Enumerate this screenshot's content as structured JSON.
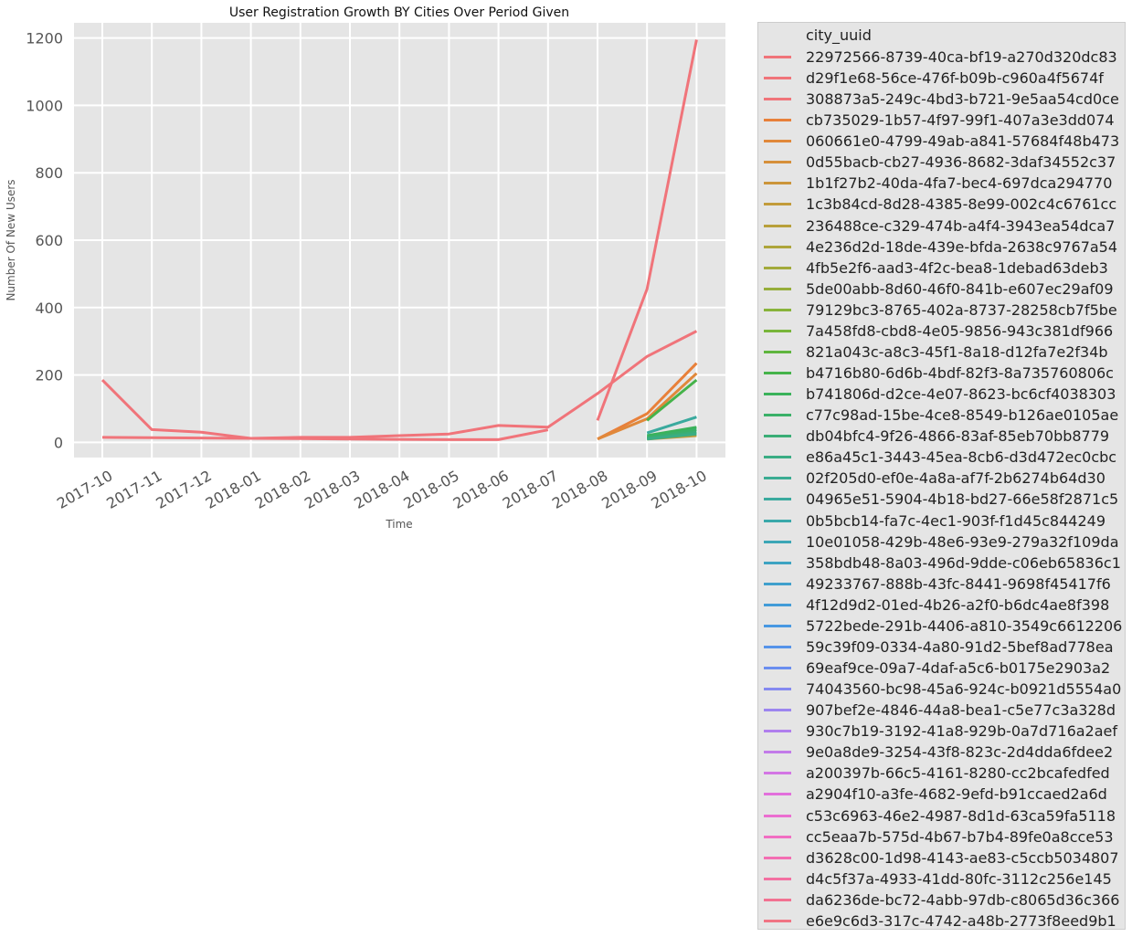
{
  "chart_data": {
    "type": "line",
    "title": "User Registration Growth BY Cities Over Period Given",
    "xlabel": "Time",
    "ylabel": "Number Of New Users",
    "x": [
      "2017-10",
      "2017-11",
      "2017-12",
      "2018-01",
      "2018-02",
      "2018-03",
      "2018-04",
      "2018-05",
      "2018-06",
      "2018-07",
      "2018-08",
      "2018-09",
      "2018-10"
    ],
    "ylim": [
      -45,
      1245
    ],
    "yticks": [
      0,
      200,
      400,
      600,
      800,
      1000,
      1200
    ],
    "grid": true,
    "legend_title": "city_uuid",
    "legend_position": "outside-right",
    "series": [
      {
        "name": "22972566-8739-40ca-bf19-a270d320dc83",
        "color": "#f0747a",
        "values": [
          null,
          null,
          null,
          null,
          null,
          null,
          null,
          null,
          null,
          null,
          65,
          455,
          1195
        ]
      },
      {
        "name": "d29f1e68-56ce-476f-b09b-c960a4f5674f",
        "color": "#f0747a",
        "values": [
          185,
          38,
          30,
          12,
          15,
          15,
          20,
          25,
          50,
          45,
          145,
          255,
          330
        ]
      },
      {
        "name": "308873a5-249c-4bd3-b721-9e5aa54cd0ce",
        "color": "#f0747a",
        "values": [
          15,
          14,
          13,
          12,
          11,
          10,
          9,
          8,
          8,
          37,
          null,
          null,
          null
        ]
      },
      {
        "name": "cb735029-1b57-4f97-99f1-407a3e3dd074",
        "color": "#e8803a",
        "values": [
          null,
          null,
          null,
          null,
          null,
          null,
          null,
          null,
          null,
          null,
          10,
          85,
          235
        ]
      },
      {
        "name": "060661e0-4799-49ab-a841-57684f48b473",
        "color": "#e0883a",
        "values": [
          null,
          null,
          null,
          null,
          null,
          null,
          null,
          null,
          null,
          null,
          10,
          70,
          205
        ]
      },
      {
        "name": "0d55bacb-cb27-4936-8682-3daf34552c37",
        "color": "#d68f3a",
        "values": [
          null,
          null,
          null,
          null,
          null,
          null,
          null,
          null,
          null,
          null,
          null,
          null,
          null
        ]
      },
      {
        "name": "1b1f27b2-40da-4fa7-bec4-697dca294770",
        "color": "#cc953a",
        "values": [
          null,
          null,
          null,
          null,
          null,
          null,
          null,
          null,
          null,
          null,
          null,
          null,
          null
        ]
      },
      {
        "name": "1c3b84cd-8d28-4385-8e99-002c4c6761cc",
        "color": "#c29b3a",
        "values": [
          null,
          null,
          null,
          null,
          null,
          null,
          null,
          null,
          null,
          null,
          null,
          10,
          20
        ]
      },
      {
        "name": "236488ce-c329-474b-a4f4-3943ea54dca7",
        "color": "#b8a03a",
        "values": [
          null,
          null,
          null,
          null,
          null,
          null,
          null,
          null,
          null,
          null,
          null,
          null,
          null
        ]
      },
      {
        "name": "4e236d2d-18de-439e-bfda-2638c9767a54",
        "color": "#aea53a",
        "values": [
          null,
          null,
          null,
          null,
          null,
          null,
          null,
          null,
          null,
          null,
          null,
          null,
          null
        ]
      },
      {
        "name": "4fb5e2f6-aad3-4f2c-bea8-1debad63deb3",
        "color": "#a2aa3a",
        "values": [
          null,
          null,
          null,
          null,
          null,
          null,
          null,
          null,
          null,
          null,
          null,
          null,
          null
        ]
      },
      {
        "name": "5de00abb-8d60-46f0-841b-e607ec29af09",
        "color": "#96ae3a",
        "values": [
          null,
          null,
          null,
          null,
          null,
          null,
          null,
          null,
          null,
          null,
          null,
          null,
          null
        ]
      },
      {
        "name": "79129bc3-8765-402a-8737-28258cb7f5be",
        "color": "#88b33a",
        "values": [
          null,
          null,
          null,
          null,
          null,
          null,
          null,
          null,
          null,
          null,
          null,
          null,
          null
        ]
      },
      {
        "name": "7a458fd8-cbd8-4e05-9856-943c381df966",
        "color": "#78b53a",
        "values": [
          null,
          null,
          null,
          null,
          null,
          null,
          null,
          null,
          null,
          null,
          null,
          null,
          null
        ]
      },
      {
        "name": "821a043c-a8c3-45f1-8a18-d12fa7e2f34b",
        "color": "#5fb53e",
        "values": [
          null,
          null,
          null,
          null,
          null,
          null,
          null,
          null,
          null,
          null,
          null,
          null,
          null
        ]
      },
      {
        "name": "b4716b80-6d6b-4bdf-82f3-8a735760806c",
        "color": "#45b34a",
        "values": [
          null,
          null,
          null,
          null,
          null,
          null,
          null,
          null,
          null,
          null,
          null,
          65,
          185
        ]
      },
      {
        "name": "b741806d-d2ce-4e07-8623-bc6cf4038303",
        "color": "#3ab25a",
        "values": [
          null,
          null,
          null,
          null,
          null,
          null,
          null,
          null,
          null,
          null,
          null,
          20,
          45
        ]
      },
      {
        "name": "c77c98ad-15be-4ce8-8549-b126ae0105ae",
        "color": "#3ab068",
        "values": [
          null,
          null,
          null,
          null,
          null,
          null,
          null,
          null,
          null,
          null,
          null,
          15,
          38
        ]
      },
      {
        "name": "db04bfc4-9f26-4866-83af-85eb70bb8779",
        "color": "#3aae76",
        "values": [
          null,
          null,
          null,
          null,
          null,
          null,
          null,
          null,
          null,
          null,
          null,
          12,
          30
        ]
      },
      {
        "name": "e86a45c1-3443-45ea-8cb6-d3d472ec0cbc",
        "color": "#3aad84",
        "values": [
          null,
          null,
          null,
          null,
          null,
          null,
          null,
          null,
          null,
          null,
          null,
          10,
          25
        ]
      },
      {
        "name": "02f205d0-ef0e-4a8a-af7f-2b6274b64d30",
        "color": "#3aac92",
        "values": [
          null,
          null,
          null,
          null,
          null,
          null,
          null,
          null,
          null,
          null,
          null,
          null,
          null
        ]
      },
      {
        "name": "04965e51-5904-4b18-bd27-66e58f2871c5",
        "color": "#3aaa9e",
        "values": [
          null,
          null,
          null,
          null,
          null,
          null,
          null,
          null,
          null,
          null,
          null,
          28,
          75
        ]
      },
      {
        "name": "0b5bcb14-fa7c-4ec1-903f-f1d45c844249",
        "color": "#3aa8aa",
        "values": [
          null,
          null,
          null,
          null,
          null,
          null,
          null,
          null,
          null,
          null,
          null,
          null,
          null
        ]
      },
      {
        "name": "10e01058-429b-48e6-93e9-279a32f109da",
        "color": "#3ba6b6",
        "values": [
          null,
          null,
          null,
          null,
          null,
          null,
          null,
          null,
          null,
          null,
          null,
          null,
          null
        ]
      },
      {
        "name": "358bdb48-8a03-496d-9dde-c06eb65836c1",
        "color": "#3da3c2",
        "values": [
          null,
          null,
          null,
          null,
          null,
          null,
          null,
          null,
          null,
          null,
          null,
          null,
          null
        ]
      },
      {
        "name": "49233767-888b-43fc-8441-9698f45417f6",
        "color": "#3fa0cd",
        "values": [
          null,
          null,
          null,
          null,
          null,
          null,
          null,
          null,
          null,
          null,
          null,
          null,
          null
        ]
      },
      {
        "name": "4f12d9d2-01ed-4b26-a2f0-b6dc4ae8f398",
        "color": "#429cd8",
        "values": [
          null,
          null,
          null,
          null,
          null,
          null,
          null,
          null,
          null,
          null,
          null,
          null,
          null
        ]
      },
      {
        "name": "5722bede-291b-4406-a810-3549c6612206",
        "color": "#4898e2",
        "values": [
          null,
          null,
          null,
          null,
          null,
          null,
          null,
          null,
          null,
          null,
          null,
          null,
          null
        ]
      },
      {
        "name": "59c39f09-0334-4a80-91d2-5bef8ad778ea",
        "color": "#5693ea",
        "values": [
          null,
          null,
          null,
          null,
          null,
          null,
          null,
          null,
          null,
          null,
          null,
          null,
          null
        ]
      },
      {
        "name": "69eaf9ce-09a7-4daf-a5c6-b0175e2903a2",
        "color": "#6a8eef",
        "values": [
          null,
          null,
          null,
          null,
          null,
          null,
          null,
          null,
          null,
          null,
          null,
          null,
          null
        ]
      },
      {
        "name": "74043560-bc98-45a6-924c-b0921d5554a0",
        "color": "#8489f0",
        "values": [
          null,
          null,
          null,
          null,
          null,
          null,
          null,
          null,
          null,
          null,
          null,
          null,
          null
        ]
      },
      {
        "name": "907bef2e-4846-44a8-bea1-c5e77c3a328d",
        "color": "#9c85ef",
        "values": [
          null,
          null,
          null,
          null,
          null,
          null,
          null,
          null,
          null,
          null,
          null,
          null,
          null
        ]
      },
      {
        "name": "930c7b19-3192-41a8-929b-0a7d716a2aef",
        "color": "#b07fed",
        "values": [
          null,
          null,
          null,
          null,
          null,
          null,
          null,
          null,
          null,
          null,
          null,
          null,
          null
        ]
      },
      {
        "name": "9e0a8de9-3254-43f8-823c-2d4dda6fdee2",
        "color": "#c27be9",
        "values": [
          null,
          null,
          null,
          null,
          null,
          null,
          null,
          null,
          null,
          null,
          null,
          null,
          null
        ]
      },
      {
        "name": "a200397b-66c5-4161-8280-cc2bcafedfed",
        "color": "#d375e4",
        "values": [
          null,
          null,
          null,
          null,
          null,
          null,
          null,
          null,
          null,
          null,
          null,
          null,
          null
        ]
      },
      {
        "name": "a2904f10-a3fe-4682-9efd-b91ccaed2a6d",
        "color": "#e270dc",
        "values": [
          null,
          null,
          null,
          null,
          null,
          null,
          null,
          null,
          null,
          null,
          null,
          null,
          null
        ]
      },
      {
        "name": "c53c6963-46e2-4987-8d1d-63ca59fa5118",
        "color": "#ec6ed0",
        "values": [
          null,
          null,
          null,
          null,
          null,
          null,
          null,
          null,
          null,
          null,
          null,
          null,
          null
        ]
      },
      {
        "name": "cc5eaa7b-575d-4b67-b7b4-89fe0a8cce53",
        "color": "#f16ec2",
        "values": [
          null,
          null,
          null,
          null,
          null,
          null,
          null,
          null,
          null,
          null,
          null,
          null,
          null
        ]
      },
      {
        "name": "d3628c00-1d98-4143-ae83-c5ccb5034807",
        "color": "#f36eb2",
        "values": [
          null,
          null,
          null,
          null,
          null,
          null,
          null,
          null,
          null,
          null,
          null,
          null,
          null
        ]
      },
      {
        "name": "d4c5f37a-4933-41dd-80fc-3112c256e145",
        "color": "#f370a2",
        "values": [
          null,
          null,
          null,
          null,
          null,
          null,
          null,
          null,
          null,
          null,
          null,
          null,
          null
        ]
      },
      {
        "name": "da6236de-bc72-4abb-97db-c8065d36c366",
        "color": "#f27292",
        "values": [
          null,
          null,
          null,
          null,
          null,
          null,
          null,
          null,
          null,
          null,
          null,
          null,
          null
        ]
      },
      {
        "name": "e6e9c6d3-317c-4742-a48b-2773f8eed9b1",
        "color": "#f07484",
        "values": [
          null,
          null,
          null,
          null,
          null,
          null,
          null,
          null,
          null,
          null,
          null,
          null,
          null
        ]
      }
    ]
  }
}
